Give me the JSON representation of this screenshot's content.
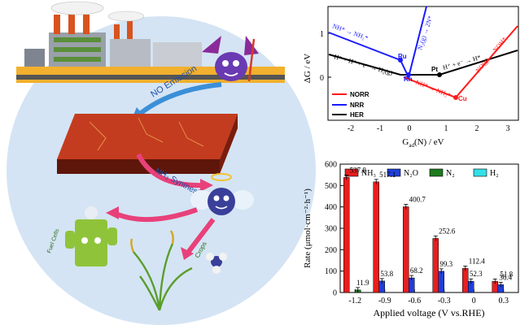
{
  "illustration": {
    "no_emission_label": "NO Emission",
    "nh3_synthesis_label": "NH₃ Synthesis",
    "fuel_cells_label": "Fuel Cells",
    "crops_label": "Crops",
    "colors": {
      "circle": "#cfe0f2",
      "arrow_pink": "#e8417a",
      "arrow_blue": "#3b8fd8",
      "slab_top": "#c0391e",
      "slab_side": "#6b1a0c"
    }
  },
  "volcano": {
    "ylabel": "ΔG / eV",
    "xlabel_main": "G",
    "xlabel_sub": "ad",
    "xlabel_rest": "(N) / eV",
    "x_ticks": [
      "-2",
      "-1",
      "0",
      "1",
      "2",
      "3"
    ],
    "y_ticks": [
      "0",
      "1"
    ],
    "legend": [
      {
        "label": "NORR",
        "color": "#ff1a1a"
      },
      {
        "label": "NRR",
        "color": "#1a1aff"
      },
      {
        "label": "HER",
        "color": "#000000"
      }
    ],
    "metals": [
      "Ru",
      "Rh",
      "Pt",
      "Cu"
    ],
    "annotations": {
      "nrr_left": "NH* → NH₂*",
      "nrr_right": "N₂(g) → 2N*",
      "her_left": "H* + H⁺ + e⁻ → H₂(g)",
      "her_right": "H⁺ + e⁻ → H*",
      "norr_left": "NH* → NH₂*",
      "norr_right": "NO(g) → NOH*"
    }
  },
  "chart_data": [
    {
      "type": "bar",
      "title": "",
      "xlabel": "Applied voltage (V vs.RHE)",
      "ylabel": "Rate (μmol·cm⁻²·h⁻¹)",
      "categories": [
        "-1.2",
        "-0.9",
        "-0.6",
        "-0.3",
        "0",
        "0.3"
      ],
      "ylim": [
        0,
        600
      ],
      "yticks": [
        0,
        100,
        200,
        300,
        400,
        500,
        600
      ],
      "legend_position": "top",
      "series": [
        {
          "name": "NH₃",
          "color": "#e81e1e",
          "values": [
            537.8,
            517.1,
            400.7,
            252.6,
            112.4,
            51.8
          ]
        },
        {
          "name": "N₂O",
          "color": "#1f3fd9",
          "values": [
            null,
            53.8,
            68.2,
            99.3,
            52.3,
            36.4
          ]
        },
        {
          "name": "N₂",
          "color": "#1e7a1e",
          "values": [
            11.9,
            null,
            null,
            null,
            null,
            null
          ]
        },
        {
          "name": "H₂",
          "color": "#33e0e8",
          "values": [
            null,
            null,
            null,
            null,
            null,
            null
          ]
        }
      ],
      "data_labels": [
        {
          "series": 0,
          "values": [
            "537.8",
            "517.1",
            "400.7",
            "252.6",
            "112.4",
            "51.8"
          ]
        },
        {
          "series": 1,
          "values": [
            "",
            "53.8",
            "68.2",
            "99.3",
            "52.3",
            "36.4"
          ]
        },
        {
          "series": 2,
          "values": [
            "11.9",
            "",
            "",
            "",
            "",
            ""
          ]
        }
      ]
    }
  ]
}
